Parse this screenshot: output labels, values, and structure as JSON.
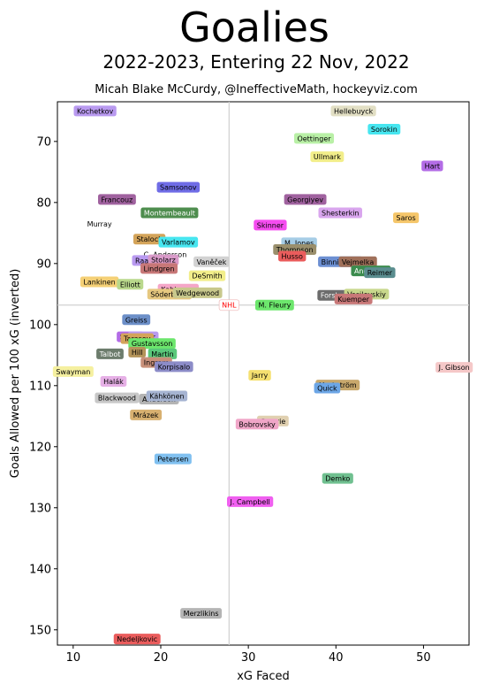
{
  "chart_data": {
    "type": "scatter",
    "title": "Goalies",
    "subtitle": "2022-2023, Entering 22 Nov, 2022",
    "credit": "Micah Blake McCurdy, @IneffectiveMath, hockeyviz.com",
    "xlabel": "xG Faced",
    "ylabel": "Goals Allowed per 100 xG (inverted)",
    "xlim": [
      8.2,
      55.2
    ],
    "ylim": [
      152.5,
      63.5
    ],
    "y_inverted": true,
    "xticks": [
      10,
      20,
      30,
      40,
      50
    ],
    "yticks": [
      70,
      80,
      90,
      100,
      110,
      120,
      130,
      140,
      150
    ],
    "reference": {
      "label": "NHL",
      "x": 27.8,
      "y": 96.8,
      "color": "#ff0000"
    },
    "points": [
      {
        "name": "Kochetkov",
        "x": 12.5,
        "y": 65.0,
        "color": "#b99af0"
      },
      {
        "name": "Hellebuyck",
        "x": 42.0,
        "y": 65.0,
        "color": "#e2dfc4"
      },
      {
        "name": "Oettinger",
        "x": 37.5,
        "y": 69.5,
        "color": "#b9f0a6"
      },
      {
        "name": "Sorokin",
        "x": 45.5,
        "y": 68.0,
        "color": "#47e6f0"
      },
      {
        "name": "Ullmark",
        "x": 39.0,
        "y": 72.5,
        "color": "#f2ee8a"
      },
      {
        "name": "Hart",
        "x": 51.0,
        "y": 74.0,
        "color": "#b36ce6"
      },
      {
        "name": "Samsonov",
        "x": 22.0,
        "y": 77.5,
        "color": "#6f6ce6"
      },
      {
        "name": "Francouz",
        "x": 15.0,
        "y": 79.5,
        "color": "#a0629f"
      },
      {
        "name": "Georgiyev",
        "x": 36.5,
        "y": 79.5,
        "color": "#a0629f"
      },
      {
        "name": "Montembeault",
        "x": 21.0,
        "y": 81.7,
        "color": "#4e8d4e"
      },
      {
        "name": "Shesterkin",
        "x": 40.5,
        "y": 81.7,
        "color": "#d9a6ee"
      },
      {
        "name": "Saros",
        "x": 48.0,
        "y": 82.5,
        "color": "#f5c66a"
      },
      {
        "name": "Murray",
        "x": 13.0,
        "y": 83.5,
        "color": "#ffffff"
      },
      {
        "name": "Skinner",
        "x": 32.5,
        "y": 83.7,
        "color": "#f54cf0"
      },
      {
        "name": "Stalock",
        "x": 18.7,
        "y": 86.0,
        "color": "#d4a45a"
      },
      {
        "name": "Varlamov",
        "x": 22.0,
        "y": 86.5,
        "color": "#47e6f0"
      },
      {
        "name": "M. Jones",
        "x": 35.8,
        "y": 86.6,
        "color": "#a6cde6"
      },
      {
        "name": "Thompson",
        "x": 35.3,
        "y": 87.7,
        "color": "#9a8f6c"
      },
      {
        "name": "C. Anderson",
        "x": 20.5,
        "y": 88.5,
        "color": "#ffffff"
      },
      {
        "name": "Husso",
        "x": 35.0,
        "y": 88.8,
        "color": "#ea5c5c"
      },
      {
        "name": "Raanta",
        "x": 18.5,
        "y": 89.5,
        "color": "#b99af0"
      },
      {
        "name": "Stolarz",
        "x": 20.3,
        "y": 89.4,
        "color": "#d99ac9"
      },
      {
        "name": "Vaněček",
        "x": 25.8,
        "y": 89.7,
        "color": "#d2d2d2"
      },
      {
        "name": "Binnington",
        "x": 40.5,
        "y": 89.7,
        "color": "#6c8fd2"
      },
      {
        "name": "Vejmelka",
        "x": 42.5,
        "y": 89.7,
        "color": "#a0705a"
      },
      {
        "name": "Lindgren",
        "x": 19.8,
        "y": 90.8,
        "color": "#c87878"
      },
      {
        "name": "Andersen",
        "x": 44.0,
        "y": 91.2,
        "color": "#3c8c4e"
      },
      {
        "name": "Reimer",
        "x": 45.0,
        "y": 91.5,
        "color": "#5a8d8f"
      },
      {
        "name": "DeSmith",
        "x": 25.3,
        "y": 92.0,
        "color": "#f2ee8a"
      },
      {
        "name": "Lankinen",
        "x": 13.0,
        "y": 93.0,
        "color": "#f5d076"
      },
      {
        "name": "Elliott",
        "x": 16.5,
        "y": 93.4,
        "color": "#b9d88c"
      },
      {
        "name": "Kahkonen",
        "x": 22.0,
        "y": 94.2,
        "color": "#f5a6c8"
      },
      {
        "name": "Söderblom",
        "x": 21.0,
        "y": 95.0,
        "color": "#e6c880"
      },
      {
        "name": "Wedgewood",
        "x": 24.2,
        "y": 94.8,
        "color": "#c8c88c"
      },
      {
        "name": "Forsberg",
        "x": 40.0,
        "y": 95.2,
        "color": "#6c6c6c"
      },
      {
        "name": "Vasilevskiy",
        "x": 43.5,
        "y": 95.0,
        "color": "#c8d88c"
      },
      {
        "name": "Kuemper",
        "x": 42.0,
        "y": 95.8,
        "color": "#c87878"
      },
      {
        "name": "M. Fleury",
        "x": 33.0,
        "y": 96.8,
        "color": "#6ce66c"
      },
      {
        "name": "Greiss",
        "x": 17.2,
        "y": 99.2,
        "color": "#6c8fc8"
      },
      {
        "name": "Smith",
        "x": 16.5,
        "y": 102.0,
        "color": "#b36ce6"
      },
      {
        "name": "Lehner",
        "x": 18.0,
        "y": 102.0,
        "color": "#b99af0"
      },
      {
        "name": "Tarasov",
        "x": 17.3,
        "y": 102.3,
        "color": "#d4a45a"
      },
      {
        "name": "Gustavsson",
        "x": 19.0,
        "y": 103.1,
        "color": "#6ce66c"
      },
      {
        "name": "Talbot",
        "x": 14.2,
        "y": 104.8,
        "color": "#6c7c6c"
      },
      {
        "name": "Hill",
        "x": 17.3,
        "y": 104.5,
        "color": "#b4945a"
      },
      {
        "name": "Martin",
        "x": 20.2,
        "y": 104.8,
        "color": "#5ac87a"
      },
      {
        "name": "Ingram",
        "x": 19.5,
        "y": 106.2,
        "color": "#c8907a"
      },
      {
        "name": "Korpisalo",
        "x": 21.5,
        "y": 106.9,
        "color": "#8c8cc8"
      },
      {
        "name": "Swayman",
        "x": 10.0,
        "y": 107.7,
        "color": "#f5f0a0"
      },
      {
        "name": "Jarry",
        "x": 31.3,
        "y": 108.3,
        "color": "#f5e070"
      },
      {
        "name": "J. Gibson",
        "x": 53.5,
        "y": 107.0,
        "color": "#f5c8c8"
      },
      {
        "name": "Halák",
        "x": 14.6,
        "y": 109.3,
        "color": "#e6b0e6"
      },
      {
        "name": "Markström",
        "x": 40.2,
        "y": 109.9,
        "color": "#c8a86c"
      },
      {
        "name": "Quick",
        "x": 39.0,
        "y": 110.4,
        "color": "#6ca6e6"
      },
      {
        "name": "Blackwood",
        "x": 15.0,
        "y": 112.0,
        "color": "#c8c8c8"
      },
      {
        "name": "Anderson",
        "x": 19.8,
        "y": 112.2,
        "color": "#b4b4b4"
      },
      {
        "name": "Kähkönen",
        "x": 20.7,
        "y": 111.7,
        "color": "#a6b4d2"
      },
      {
        "name": "Mrázek",
        "x": 18.3,
        "y": 114.8,
        "color": "#d8b070"
      },
      {
        "name": "Comrie",
        "x": 32.8,
        "y": 115.8,
        "color": "#e0d0b0"
      },
      {
        "name": "Bobrovsky",
        "x": 31.0,
        "y": 116.3,
        "color": "#f0a6c8"
      },
      {
        "name": "Petersen",
        "x": 21.4,
        "y": 122.0,
        "color": "#80c0f0"
      },
      {
        "name": "Demko",
        "x": 40.2,
        "y": 125.2,
        "color": "#70c090"
      },
      {
        "name": "J. Campbell",
        "x": 30.2,
        "y": 129.0,
        "color": "#f060f0"
      },
      {
        "name": "Merzlikins",
        "x": 24.6,
        "y": 147.3,
        "color": "#b4b4b4"
      },
      {
        "name": "Nedeljkovic",
        "x": 17.3,
        "y": 151.5,
        "color": "#ea5c5c"
      }
    ]
  }
}
